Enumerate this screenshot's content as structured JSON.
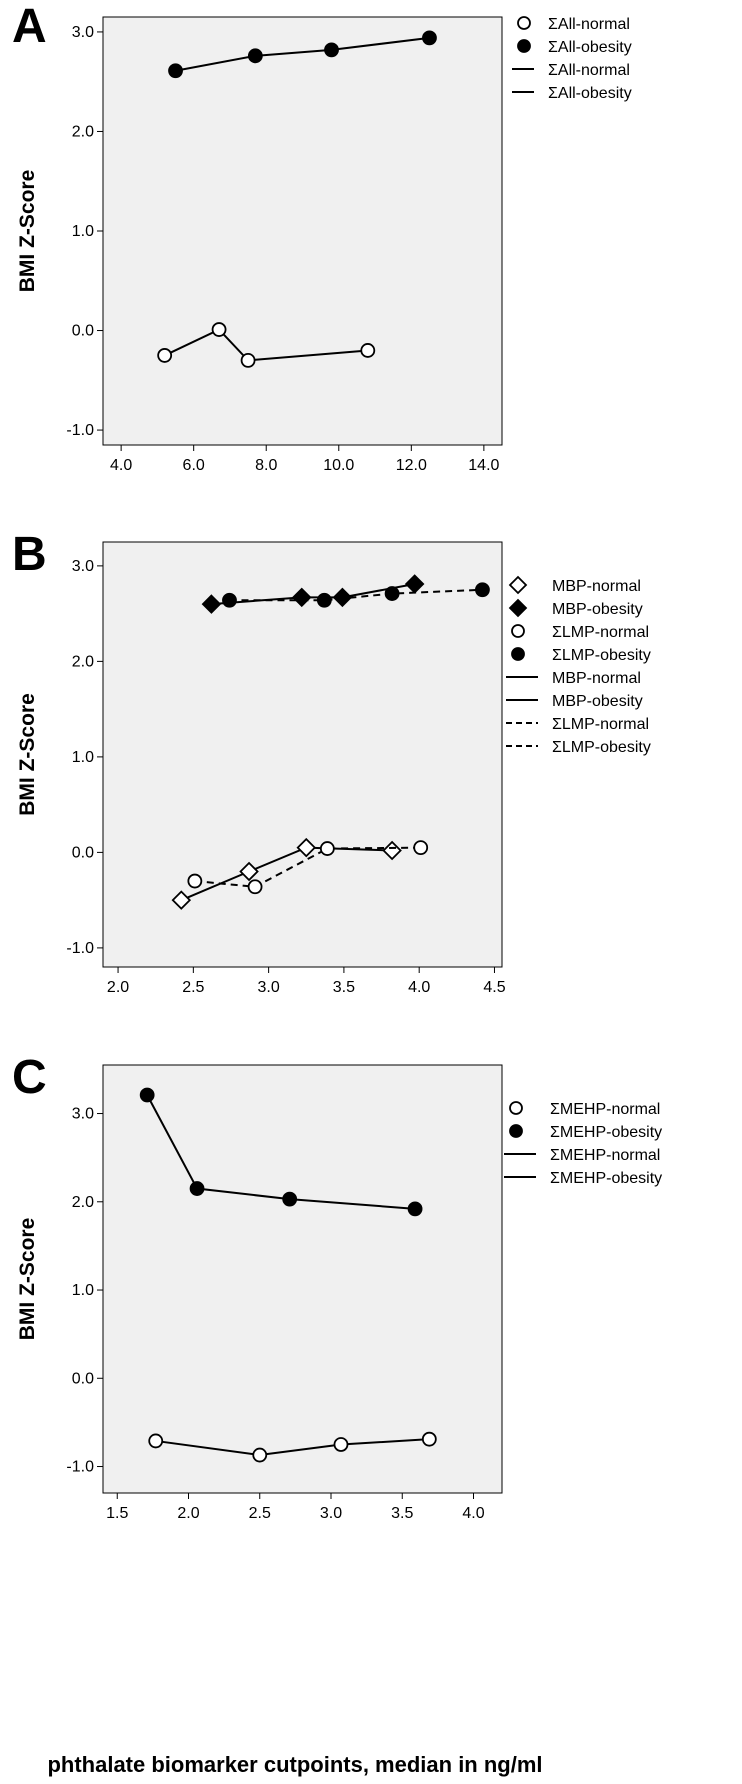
{
  "figure": {
    "xlabel": "phthalate biomarker cutpoints, median in ng/ml",
    "colors": {
      "plot_background": "#f0f0f0",
      "line": "#000000",
      "marker_open_fill": "#ffffff"
    }
  },
  "chart_data": [
    {
      "panel": "A",
      "type": "line",
      "title": "",
      "xlabel": "",
      "ylabel": "BMI Z-Score",
      "xlim": [
        3.5,
        14.5
      ],
      "ylim": [
        -1.15,
        3.15
      ],
      "xticks": [
        4.0,
        6.0,
        8.0,
        10.0,
        12.0,
        14.0
      ],
      "xtick_labels": [
        "4.0",
        "6.0",
        "8.0",
        "10.0",
        "12.0",
        "14.0"
      ],
      "yticks": [
        -1.0,
        0.0,
        1.0,
        2.0,
        3.0
      ],
      "ytick_labels": [
        "-1.0",
        "0.0",
        "1.0",
        "2.0",
        "3.0"
      ],
      "grid": false,
      "legend_position": "right",
      "legend": [
        {
          "label": "ΣAll-normal",
          "symbol": "circle-open"
        },
        {
          "label": "ΣAll-obesity",
          "symbol": "circle-filled"
        },
        {
          "label": "ΣAll-normal",
          "symbol": "line-solid"
        },
        {
          "label": "ΣAll-obesity",
          "symbol": "line-solid"
        }
      ],
      "series": [
        {
          "name": "ΣAll-normal",
          "marker": "circle-open",
          "line": "solid",
          "x": [
            5.2,
            6.7,
            7.5,
            10.8
          ],
          "y": [
            -0.25,
            0.01,
            -0.3,
            -0.2
          ]
        },
        {
          "name": "ΣAll-obesity",
          "marker": "circle-filled",
          "line": "solid",
          "x": [
            5.5,
            7.7,
            9.8,
            12.5
          ],
          "y": [
            2.61,
            2.76,
            2.82,
            2.94
          ]
        }
      ]
    },
    {
      "panel": "B",
      "type": "line",
      "title": "",
      "xlabel": "",
      "ylabel": "BMI Z-Score",
      "xlim": [
        1.9,
        4.55
      ],
      "ylim": [
        -1.2,
        3.25
      ],
      "xticks": [
        2.0,
        2.5,
        3.0,
        3.5,
        4.0,
        4.5
      ],
      "xtick_labels": [
        "2.0",
        "2.5",
        "3.0",
        "3.5",
        "4.0",
        "4.5"
      ],
      "yticks": [
        -1.0,
        0.0,
        1.0,
        2.0,
        3.0
      ],
      "ytick_labels": [
        "-1.0",
        "0.0",
        "1.0",
        "2.0",
        "3.0"
      ],
      "grid": false,
      "legend_position": "right",
      "legend": [
        {
          "label": "MBP-normal",
          "symbol": "diamond-open"
        },
        {
          "label": "MBP-obesity",
          "symbol": "diamond-filled"
        },
        {
          "label": "ΣLMP-normal",
          "symbol": "circle-open"
        },
        {
          "label": "ΣLMP-obesity",
          "symbol": "circle-filled"
        },
        {
          "label": "MBP-normal",
          "symbol": "line-solid"
        },
        {
          "label": "MBP-obesity",
          "symbol": "line-solid"
        },
        {
          "label": "ΣLMP-normal",
          "symbol": "line-dashed"
        },
        {
          "label": "ΣLMP-obesity",
          "symbol": "line-dashed"
        }
      ],
      "series": [
        {
          "name": "MBP-normal",
          "marker": "diamond-open",
          "line": "solid",
          "x": [
            2.42,
            2.87,
            3.25,
            3.82
          ],
          "y": [
            -0.5,
            -0.2,
            0.05,
            0.02
          ]
        },
        {
          "name": "MBP-obesity",
          "marker": "diamond-filled",
          "line": "solid",
          "x": [
            2.62,
            3.22,
            3.49,
            3.97
          ],
          "y": [
            2.6,
            2.67,
            2.67,
            2.81
          ]
        },
        {
          "name": "ΣLMP-normal",
          "marker": "circle-open",
          "line": "dashed",
          "x": [
            2.51,
            2.91,
            3.39,
            4.01
          ],
          "y": [
            -0.3,
            -0.36,
            0.04,
            0.05
          ]
        },
        {
          "name": "ΣLMP-obesity",
          "marker": "circle-filled",
          "line": "dashed",
          "x": [
            2.74,
            3.37,
            3.82,
            4.42
          ],
          "y": [
            2.64,
            2.64,
            2.71,
            2.75
          ]
        }
      ]
    },
    {
      "panel": "C",
      "type": "line",
      "title": "",
      "xlabel": "",
      "ylabel": "BMI Z-Score",
      "xlim": [
        1.4,
        4.2
      ],
      "ylim": [
        -1.3,
        3.55
      ],
      "xticks": [
        1.5,
        2.0,
        2.5,
        3.0,
        3.5,
        4.0
      ],
      "xtick_labels": [
        "1.5",
        "2.0",
        "2.5",
        "3.0",
        "3.5",
        "4.0"
      ],
      "yticks": [
        -1.0,
        0.0,
        1.0,
        2.0,
        3.0
      ],
      "ytick_labels": [
        "-1.0",
        "0.0",
        "1.0",
        "2.0",
        "3.0"
      ],
      "grid": false,
      "legend_position": "right",
      "legend": [
        {
          "label": "ΣMEHP-normal",
          "symbol": "circle-open"
        },
        {
          "label": "ΣMEHP-obesity",
          "symbol": "circle-filled"
        },
        {
          "label": "ΣMEHP-normal",
          "symbol": "line-solid"
        },
        {
          "label": "ΣMEHP-obesity",
          "symbol": "line-solid"
        }
      ],
      "series": [
        {
          "name": "ΣMEHP-normal",
          "marker": "circle-open",
          "line": "solid",
          "x": [
            1.77,
            2.5,
            3.07,
            3.69
          ],
          "y": [
            -0.71,
            -0.87,
            -0.75,
            -0.69
          ]
        },
        {
          "name": "ΣMEHP-obesity",
          "marker": "circle-filled",
          "line": "solid",
          "x": [
            1.71,
            2.06,
            2.71,
            3.59
          ],
          "y": [
            3.21,
            2.15,
            2.03,
            1.92
          ]
        }
      ]
    }
  ]
}
